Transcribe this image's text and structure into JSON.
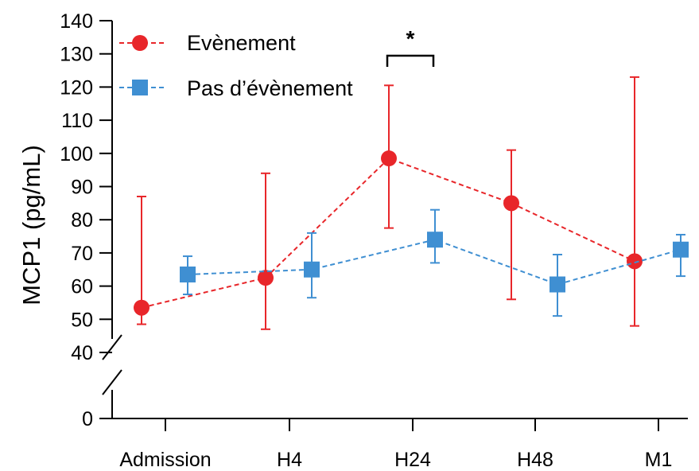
{
  "chart_data": {
    "type": "line",
    "title": "",
    "xlabel": "",
    "ylabel": "MCP1 (pg/mL)",
    "categories": [
      "Admission",
      "H4",
      "H24",
      "H48",
      "M1"
    ],
    "y_ticks": [
      0,
      40,
      50,
      60,
      70,
      80,
      90,
      100,
      110,
      120,
      130,
      140
    ],
    "y_axis_break": [
      0,
      40
    ],
    "ylim": [
      0,
      140
    ],
    "grid": false,
    "legend_position": "top-left",
    "series": [
      {
        "name": "Evènement",
        "color": "#e8262a",
        "marker": "circle",
        "line_style": "dashed",
        "values": [
          53.5,
          62.5,
          98.5,
          85,
          67.5
        ],
        "error_low": [
          48.5,
          47,
          77.5,
          56,
          48
        ],
        "error_high": [
          87,
          94,
          120.5,
          101,
          123
        ]
      },
      {
        "name": "Pas d’évènement",
        "color": "#3f8fd2",
        "marker": "square",
        "line_style": "dashed",
        "values": [
          63.5,
          65,
          74,
          60.5,
          71
        ],
        "error_low": [
          57.5,
          56.5,
          67,
          51,
          63
        ],
        "error_high": [
          69,
          76,
          83,
          69.5,
          75.5
        ]
      }
    ],
    "annotations": [
      {
        "text": "*",
        "between": [
          "H24",
          "H24"
        ]
      }
    ]
  }
}
